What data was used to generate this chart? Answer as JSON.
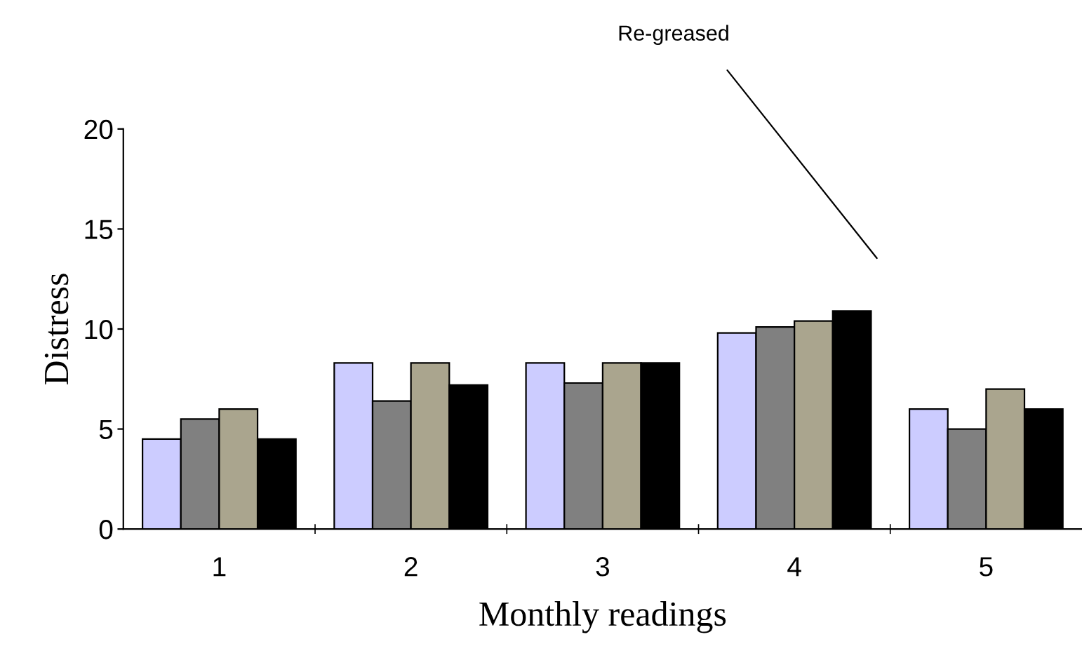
{
  "chart_data": {
    "type": "bar",
    "xlabel": "Monthly readings",
    "ylabel": "Distress",
    "categories": [
      "1",
      "2",
      "3",
      "4",
      "5"
    ],
    "series": [
      {
        "color": "#ccccff",
        "values": [
          4.5,
          8.3,
          8.3,
          9.8,
          6.0
        ]
      },
      {
        "color": "#808080",
        "values": [
          5.5,
          6.4,
          7.3,
          10.1,
          5.0
        ]
      },
      {
        "color": "#aaa58e",
        "values": [
          6.0,
          8.3,
          8.3,
          10.4,
          7.0
        ]
      },
      {
        "color": "#000000",
        "values": [
          4.5,
          7.2,
          8.3,
          10.9,
          6.0
        ]
      }
    ],
    "ylim": [
      0,
      20
    ],
    "yticks": [
      0,
      5,
      10,
      15,
      20
    ],
    "grid": false,
    "legend": false,
    "annotations": [
      "Re-greased"
    ]
  }
}
